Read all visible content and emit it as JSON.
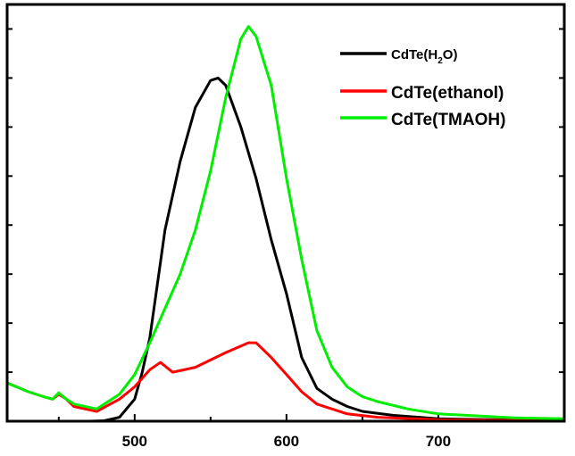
{
  "chart_data": {
    "type": "line",
    "title": "",
    "xlabel": "",
    "ylabel": "",
    "xlim": [
      416,
      783
    ],
    "ylim": [
      0,
      8.5
    ],
    "x_ticks": [
      500,
      600,
      700
    ],
    "x_tick_labels": [
      "500",
      "600",
      "700"
    ],
    "x_minor_ticks": [
      450,
      550,
      650,
      750
    ],
    "y_ticks": [
      1,
      2,
      3,
      4,
      5,
      6,
      7,
      8
    ],
    "y_tick_labels_shown": false,
    "grid": false,
    "legend_placement": "top-right",
    "series": [
      {
        "name": "CdTe(H2O)",
        "name_main": "CdTe(H",
        "name_sub": "2",
        "name_end": "O)",
        "color": "#000000",
        "x": [
          416,
          470,
          480,
          490,
          500,
          505,
          510,
          515,
          520,
          530,
          540,
          550,
          555,
          560,
          570,
          580,
          590,
          600,
          610,
          620,
          630,
          640,
          650,
          670,
          700,
          740,
          783
        ],
        "y": [
          0,
          0,
          0.01,
          0.08,
          0.45,
          1.0,
          1.7,
          2.8,
          3.9,
          5.3,
          6.4,
          6.95,
          7.0,
          6.85,
          6.0,
          4.95,
          3.7,
          2.6,
          1.3,
          0.67,
          0.45,
          0.3,
          0.2,
          0.12,
          0.05,
          0.03,
          0.02
        ]
      },
      {
        "name": "CdTe(ethanol)",
        "color": "#ff0000",
        "x": [
          416,
          430,
          440,
          446,
          450,
          455,
          460,
          475,
          490,
          500,
          510,
          517,
          525,
          540,
          560,
          575,
          580,
          590,
          600,
          610,
          620,
          640,
          660,
          700,
          783
        ],
        "y": [
          0.78,
          0.6,
          0.5,
          0.45,
          0.55,
          0.45,
          0.3,
          0.2,
          0.45,
          0.7,
          1.05,
          1.2,
          1.0,
          1.1,
          1.4,
          1.6,
          1.6,
          1.3,
          0.95,
          0.6,
          0.35,
          0.15,
          0.08,
          0.03,
          0.01
        ]
      },
      {
        "name": "CdTe(TMAOH)",
        "color": "#00ee00",
        "x": [
          416,
          430,
          440,
          446,
          450,
          455,
          460,
          475,
          490,
          500,
          510,
          520,
          530,
          540,
          550,
          560,
          570,
          575,
          580,
          590,
          600,
          610,
          620,
          630,
          640,
          650,
          660,
          680,
          700,
          750,
          783
        ],
        "y": [
          0.78,
          0.6,
          0.5,
          0.45,
          0.58,
          0.45,
          0.35,
          0.25,
          0.55,
          0.95,
          1.6,
          2.3,
          3.0,
          3.9,
          5.1,
          6.6,
          7.8,
          8.05,
          7.85,
          6.85,
          4.95,
          3.3,
          1.85,
          1.1,
          0.7,
          0.5,
          0.4,
          0.25,
          0.15,
          0.07,
          0.05
        ]
      }
    ]
  }
}
